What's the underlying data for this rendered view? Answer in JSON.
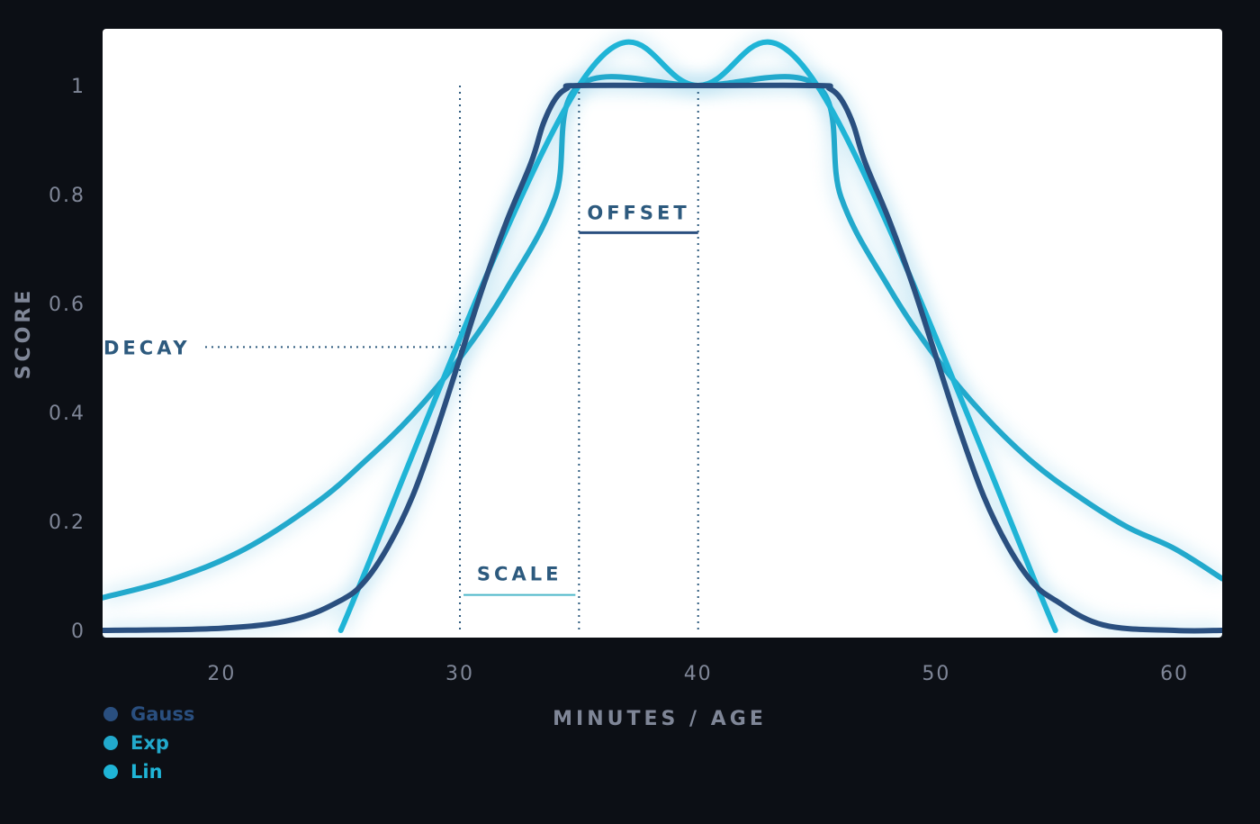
{
  "chart_data": {
    "type": "line",
    "xlabel": "MINUTES / AGE",
    "ylabel": "SCORE",
    "xlim": [
      15,
      62
    ],
    "ylim": [
      0,
      1.0
    ],
    "x_ticks": [
      "20",
      "30",
      "40",
      "50",
      "60"
    ],
    "y_ticks": [
      "0",
      "0.2",
      "0.4",
      "0.6",
      "0.8",
      "1"
    ],
    "grid": false,
    "legend_position": "bottom-left",
    "series": [
      {
        "name": "Gauss",
        "color": "#2a4f7f",
        "x": [
          15,
          20,
          23,
          25,
          26,
          27,
          28,
          29,
          30,
          31,
          32,
          33,
          33.5,
          34,
          34.5,
          35,
          40,
          45,
          45.5,
          46,
          46.5,
          47,
          48,
          49,
          50,
          51,
          52,
          53,
          54,
          55,
          57,
          60,
          62
        ],
        "y": [
          0.0,
          0.004,
          0.02,
          0.055,
          0.09,
          0.155,
          0.245,
          0.365,
          0.5,
          0.635,
          0.755,
          0.86,
          0.93,
          0.975,
          0.995,
          1.0,
          1.0,
          1.0,
          0.995,
          0.975,
          0.93,
          0.86,
          0.755,
          0.635,
          0.5,
          0.365,
          0.245,
          0.155,
          0.09,
          0.055,
          0.01,
          0.0,
          0.0
        ]
      },
      {
        "name": "Exp",
        "color": "#22a9cc",
        "x": [
          15,
          18,
          21,
          24,
          26,
          28,
          30,
          32,
          34,
          35,
          40,
          45,
          46,
          48,
          50,
          52,
          54,
          56,
          58,
          60,
          62
        ],
        "y": [
          0.06,
          0.095,
          0.15,
          0.235,
          0.31,
          0.395,
          0.5,
          0.63,
          0.795,
          1.0,
          1.0,
          1.0,
          0.795,
          0.63,
          0.5,
          0.395,
          0.31,
          0.245,
          0.19,
          0.15,
          0.095
        ]
      },
      {
        "name": "Lin",
        "color": "#1fb4d6",
        "x": [
          25,
          35,
          40,
          45,
          55
        ],
        "y": [
          0.0,
          1.0,
          1.0,
          1.0,
          0.0
        ]
      }
    ],
    "annotations": {
      "offset": {
        "label": "OFFSET",
        "x_from": 35,
        "x_to": 40,
        "y": 0.73
      },
      "scale": {
        "label": "SCALE",
        "x_from": 30,
        "x_to": 35,
        "y": 0.065
      },
      "decay": {
        "label": "DECAY",
        "y": 0.52,
        "x_to": 30
      }
    }
  }
}
